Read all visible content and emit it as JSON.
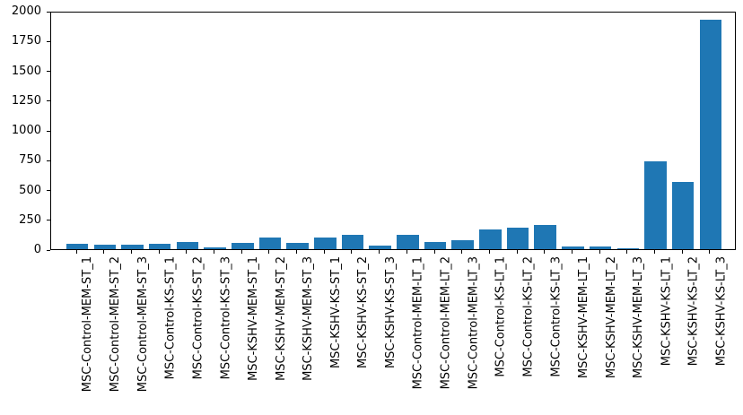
{
  "figure": {
    "background_color": "#ffffff",
    "axis_color": "#000000",
    "text_color": "#000000"
  },
  "chart_data": {
    "type": "bar",
    "title": "",
    "xlabel": "",
    "ylabel": "",
    "grid": false,
    "legend": null,
    "bar_color": "#1f77b4",
    "x_tick_rotation": 90,
    "ylim": [
      0,
      2000
    ],
    "xlim": [
      -0.95,
      23.95
    ],
    "yticks": [
      0,
      250,
      500,
      750,
      1000,
      1250,
      1500,
      1750,
      2000
    ],
    "categories": [
      "MSC-Control-MEM-ST_1",
      "MSC-Control-MEM-ST_2",
      "MSC-Control-MEM-ST_3",
      "MSC-Control-KS-ST_1",
      "MSC-Control-KS-ST_2",
      "MSC-Control-KS-ST_3",
      "MSC-KSHV-MEM-ST_1",
      "MSC-KSHV-MEM-ST_2",
      "MSC-KSHV-MEM-ST_3",
      "MSC-KSHV-KS-ST_1",
      "MSC-KSHV-KS-ST_2",
      "MSC-KSHV-KS-ST_3",
      "MSC-Control-MEM-LT_1",
      "MSC-Control-MEM-LT_2",
      "MSC-Control-MEM-LT_3",
      "MSC-Control-KS-LT_1",
      "MSC-Control-KS-LT_2",
      "MSC-Control-KS-LT_3",
      "MSC-KSHV-MEM-LT_1",
      "MSC-KSHV-MEM-LT_2",
      "MSC-KSHV-MEM-LT_3",
      "MSC-KSHV-KS-LT_1",
      "MSC-KSHV-KS-LT_2",
      "MSC-KSHV-KS-LT_3"
    ],
    "values": [
      45,
      38,
      38,
      43,
      57,
      18,
      50,
      95,
      55,
      95,
      118,
      30,
      118,
      62,
      73,
      168,
      182,
      205,
      20,
      19,
      11,
      738,
      565,
      1925
    ]
  }
}
